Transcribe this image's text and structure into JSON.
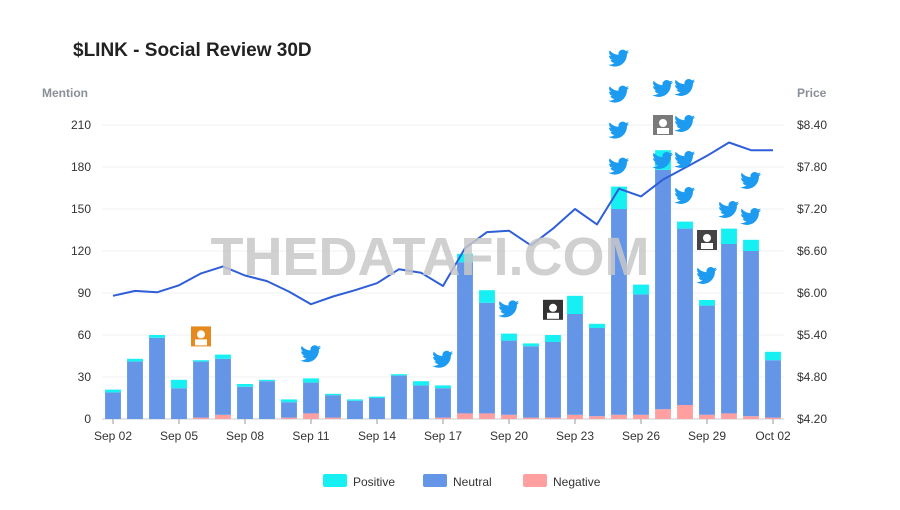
{
  "chart_data": {
    "type": "bar",
    "title": "$LINK - Social Review 30D",
    "watermark": "THEDATAFI.COM",
    "ylabel_left": "Mention",
    "ylabel_right": "Price",
    "ylim_left": [
      0,
      210
    ],
    "yticks_left": [
      "0",
      "30",
      "60",
      "90",
      "120",
      "150",
      "180",
      "210"
    ],
    "ylim_right": [
      4.2,
      8.4
    ],
    "yticks_right": [
      "$4.20",
      "$4.80",
      "$5.40",
      "$6.00",
      "$6.60",
      "$7.20",
      "$7.80",
      "$8.40"
    ],
    "x_tick_labels": [
      {
        "index": 0,
        "label": "Sep 02"
      },
      {
        "index": 3,
        "label": "Sep 05"
      },
      {
        "index": 6,
        "label": "Sep 08"
      },
      {
        "index": 9,
        "label": "Sep 11"
      },
      {
        "index": 12,
        "label": "Sep 14"
      },
      {
        "index": 15,
        "label": "Sep 17"
      },
      {
        "index": 18,
        "label": "Sep 20"
      },
      {
        "index": 21,
        "label": "Sep 23"
      },
      {
        "index": 24,
        "label": "Sep 26"
      },
      {
        "index": 27,
        "label": "Sep 29"
      },
      {
        "index": 30,
        "label": "Oct 02"
      }
    ],
    "categories": [
      "Sep 02",
      "Sep 03",
      "Sep 04",
      "Sep 05",
      "Sep 06",
      "Sep 07",
      "Sep 08",
      "Sep 09",
      "Sep 10",
      "Sep 11",
      "Sep 12",
      "Sep 13",
      "Sep 14",
      "Sep 15",
      "Sep 16",
      "Sep 17",
      "Sep 18",
      "Sep 19",
      "Sep 20",
      "Sep 21",
      "Sep 22",
      "Sep 23",
      "Sep 24",
      "Sep 25",
      "Sep 26",
      "Sep 27",
      "Sep 28",
      "Sep 29",
      "Sep 30",
      "Oct 01",
      "Oct 02"
    ],
    "series": [
      {
        "name": "Negative",
        "color": "#ff9f9f",
        "values": [
          0,
          0,
          0,
          0,
          1,
          3,
          0,
          0,
          1,
          4,
          1,
          0,
          0,
          0,
          0,
          1,
          4,
          4,
          3,
          1,
          1,
          3,
          2,
          3,
          3,
          7,
          10,
          3,
          4,
          2,
          1
        ]
      },
      {
        "name": "Neutral",
        "color": "#6595e6",
        "values": [
          19,
          41,
          58,
          22,
          40,
          40,
          23,
          27,
          11,
          22,
          16,
          13,
          15,
          31,
          24,
          21,
          108,
          79,
          53,
          51,
          54,
          72,
          63,
          147,
          86,
          171,
          126,
          78,
          121,
          118,
          41
        ]
      },
      {
        "name": "Positive",
        "color": "#16f0f2",
        "values": [
          2,
          2,
          2,
          6,
          1,
          3,
          2,
          1,
          2,
          3,
          1,
          1,
          1,
          1,
          3,
          2,
          6,
          9,
          5,
          2,
          5,
          13,
          3,
          16,
          7,
          14,
          5,
          4,
          11,
          8,
          6
        ]
      }
    ],
    "price_line": {
      "name": "Price",
      "color": "#2f5fd8",
      "values": [
        5.96,
        6.03,
        6.01,
        6.11,
        6.28,
        6.38,
        6.25,
        6.17,
        6.02,
        5.84,
        5.95,
        6.04,
        6.14,
        6.34,
        6.29,
        6.1,
        6.64,
        6.87,
        6.89,
        6.68,
        6.92,
        7.2,
        6.98,
        7.49,
        7.38,
        7.62,
        7.79,
        7.96,
        8.15,
        8.04,
        8.04
      ]
    },
    "legend": [
      "Positive",
      "Neutral",
      "Negative"
    ],
    "legend_position": "bottom-center",
    "icons": [
      {
        "index": 4,
        "count": 1,
        "kind": "avatar-icon",
        "level": 59,
        "color": "#e58a1f"
      },
      {
        "index": 9,
        "count": 1,
        "kind": "twitter-icon",
        "level": 47,
        "color": "#1d9bf0"
      },
      {
        "index": 15,
        "count": 1,
        "kind": "twitter-icon",
        "level": 43,
        "color": "#1d9bf0"
      },
      {
        "index": 18,
        "count": 1,
        "kind": "twitter-icon",
        "level": 79,
        "color": "#1d9bf0"
      },
      {
        "index": 20,
        "count": 1,
        "kind": "avatar-icon",
        "level": 78,
        "color": "#333333"
      },
      {
        "index": 23,
        "count": 4,
        "kind": "twitter-icon",
        "level": 181,
        "color": "#1d9bf0"
      },
      {
        "index": 25,
        "count": 3,
        "kind": "mixed",
        "level": 0,
        "color": "#1d9bf0"
      },
      {
        "index": 26,
        "count": 4,
        "kind": "twitter-icon",
        "level": 160,
        "color": "#1d9bf0"
      },
      {
        "index": 27,
        "count": 2,
        "kind": "mixed2",
        "level": 103,
        "color": "#1d9bf0"
      },
      {
        "index": 28,
        "count": 1,
        "kind": "twitter-icon",
        "level": 150,
        "color": "#1d9bf0"
      },
      {
        "index": 29,
        "count": 2,
        "kind": "twitter-icon",
        "level": 145,
        "color": "#1d9bf0"
      }
    ]
  }
}
